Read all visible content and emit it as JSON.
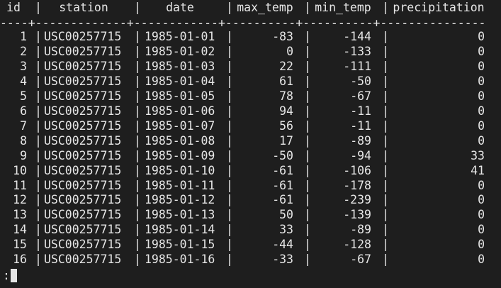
{
  "table": {
    "headers": [
      "id",
      "station",
      "date",
      "max_temp",
      "min_temp",
      "precipitation"
    ],
    "divider": "----+-------------+------------+----------+----------+---------------",
    "rows": [
      {
        "id": "1",
        "station": "USC00257715",
        "date": "1985-01-01",
        "max_temp": "-83",
        "min_temp": "-144",
        "precipitation": "0"
      },
      {
        "id": "2",
        "station": "USC00257715",
        "date": "1985-01-02",
        "max_temp": "0",
        "min_temp": "-133",
        "precipitation": "0"
      },
      {
        "id": "3",
        "station": "USC00257715",
        "date": "1985-01-03",
        "max_temp": "22",
        "min_temp": "-111",
        "precipitation": "0"
      },
      {
        "id": "4",
        "station": "USC00257715",
        "date": "1985-01-04",
        "max_temp": "61",
        "min_temp": "-50",
        "precipitation": "0"
      },
      {
        "id": "5",
        "station": "USC00257715",
        "date": "1985-01-05",
        "max_temp": "78",
        "min_temp": "-67",
        "precipitation": "0"
      },
      {
        "id": "6",
        "station": "USC00257715",
        "date": "1985-01-06",
        "max_temp": "94",
        "min_temp": "-11",
        "precipitation": "0"
      },
      {
        "id": "7",
        "station": "USC00257715",
        "date": "1985-01-07",
        "max_temp": "56",
        "min_temp": "-11",
        "precipitation": "0"
      },
      {
        "id": "8",
        "station": "USC00257715",
        "date": "1985-01-08",
        "max_temp": "17",
        "min_temp": "-89",
        "precipitation": "0"
      },
      {
        "id": "9",
        "station": "USC00257715",
        "date": "1985-01-09",
        "max_temp": "-50",
        "min_temp": "-94",
        "precipitation": "33"
      },
      {
        "id": "10",
        "station": "USC00257715",
        "date": "1985-01-10",
        "max_temp": "-61",
        "min_temp": "-106",
        "precipitation": "41"
      },
      {
        "id": "11",
        "station": "USC00257715",
        "date": "1985-01-11",
        "max_temp": "-61",
        "min_temp": "-178",
        "precipitation": "0"
      },
      {
        "id": "12",
        "station": "USC00257715",
        "date": "1985-01-12",
        "max_temp": "-61",
        "min_temp": "-239",
        "precipitation": "0"
      },
      {
        "id": "13",
        "station": "USC00257715",
        "date": "1985-01-13",
        "max_temp": "50",
        "min_temp": "-139",
        "precipitation": "0"
      },
      {
        "id": "14",
        "station": "USC00257715",
        "date": "1985-01-14",
        "max_temp": "33",
        "min_temp": "-89",
        "precipitation": "0"
      },
      {
        "id": "15",
        "station": "USC00257715",
        "date": "1985-01-15",
        "max_temp": "-44",
        "min_temp": "-128",
        "precipitation": "0"
      },
      {
        "id": "16",
        "station": "USC00257715",
        "date": "1985-01-16",
        "max_temp": "-33",
        "min_temp": "-67",
        "precipitation": "0"
      }
    ]
  },
  "pager": {
    "prompt": ":"
  },
  "colors": {
    "background": "#1e1e1e",
    "text": "#e6e6e6"
  }
}
